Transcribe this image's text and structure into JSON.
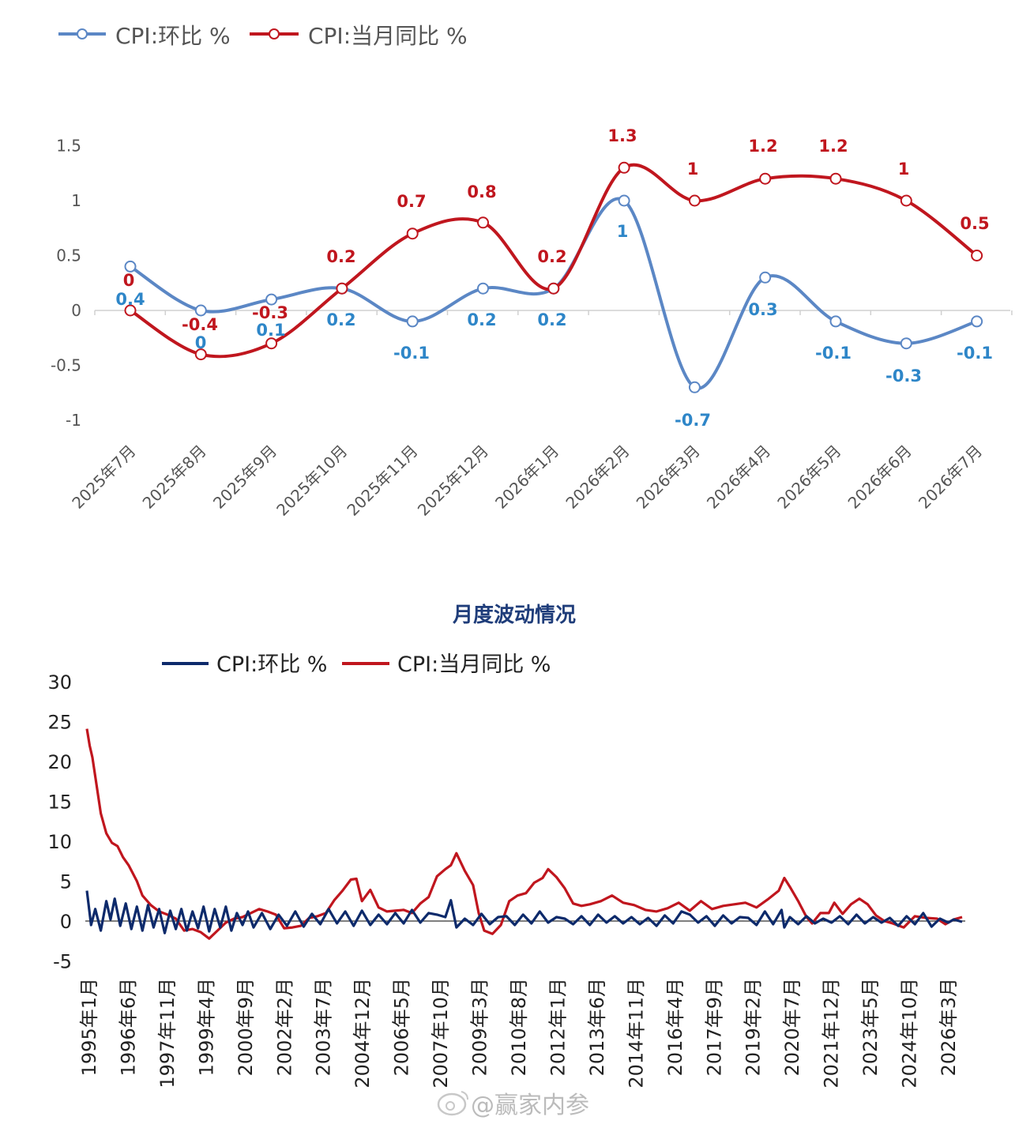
{
  "colors": {
    "mom_top": "#5b87c5",
    "yoy_top": "#c0161e",
    "mom_bottom": "#0d2a6b",
    "yoy_bottom": "#c0161e",
    "label_mom": "#2e86c8",
    "label_yoy": "#c0161e"
  },
  "watermark": "@赢家内参",
  "watermark_icon": "weibo-icon",
  "chart_data": [
    {
      "type": "line",
      "title": "",
      "legend": [
        "CPI:环比 %",
        "CPI:当月同比 %"
      ],
      "legend_position": "top-left",
      "categories": [
        "2025年7月",
        "2025年8月",
        "2025年9月",
        "2025年10月",
        "2025年11月",
        "2025年12月",
        "2026年1月",
        "2026年2月",
        "2026年3月",
        "2026年4月",
        "2026年5月",
        "2026年6月",
        "2026年7月"
      ],
      "series": [
        {
          "name": "CPI:环比 %",
          "values": [
            0.4,
            0,
            0.1,
            0.2,
            -0.1,
            0.2,
            0.2,
            1,
            -0.7,
            0.3,
            -0.1,
            -0.3,
            -0.1
          ]
        },
        {
          "name": "CPI:当月同比 %",
          "values": [
            0,
            -0.4,
            -0.3,
            0.2,
            0.7,
            0.8,
            0.2,
            1.3,
            1,
            1.2,
            1.2,
            1,
            0.5
          ]
        }
      ],
      "yticks": [
        "1.5",
        "1",
        "0.5",
        "0",
        "-0.5",
        "-1"
      ],
      "ylim": [
        -1,
        1.5
      ],
      "grid": false
    },
    {
      "type": "line",
      "title": "月度波动情况",
      "legend": [
        "CPI:环比 %",
        "CPI:当月同比 %"
      ],
      "legend_position": "top",
      "x_tick_labels": [
        "1995年1月",
        "1996年6月",
        "1997年11月",
        "1999年4月",
        "2000年9月",
        "2002年2月",
        "2003年7月",
        "2004年12月",
        "2006年5月",
        "2007年10月",
        "2009年3月",
        "2010年8月",
        "2012年1月",
        "2013年6月",
        "2014年11月",
        "2016年4月",
        "2017年9月",
        "2019年2月",
        "2020年7月",
        "2021年12月",
        "2023年5月",
        "2024年10月",
        "2026年3月"
      ],
      "x_range": [
        "1995-01",
        "2026-07"
      ],
      "yticks": [
        "30",
        "25",
        "20",
        "15",
        "10",
        "5",
        "0",
        "-5"
      ],
      "ylim": [
        -5,
        30
      ],
      "grid": false,
      "series": [
        {
          "name": "CPI:当月同比 %",
          "x": [
            1995.0,
            1995.1,
            1995.2,
            1995.35,
            1995.5,
            1995.7,
            1995.9,
            1996.1,
            1996.3,
            1996.5,
            1996.8,
            1997.0,
            1997.3,
            1997.6,
            1997.9,
            1998.2,
            1998.5,
            1998.8,
            1999.1,
            1999.4,
            1999.7,
            2000.0,
            2000.3,
            2000.6,
            2000.9,
            2001.2,
            2001.5,
            2001.8,
            2002.1,
            2002.4,
            2002.7,
            2003.0,
            2003.3,
            2003.6,
            2003.9,
            2004.2,
            2004.5,
            2004.7,
            2004.9,
            2005.2,
            2005.5,
            2005.8,
            2006.1,
            2006.4,
            2006.7,
            2007.0,
            2007.3,
            2007.6,
            2007.9,
            2008.1,
            2008.3,
            2008.6,
            2008.9,
            2009.1,
            2009.3,
            2009.6,
            2009.9,
            2010.2,
            2010.5,
            2010.8,
            2011.1,
            2011.4,
            2011.6,
            2011.9,
            2012.2,
            2012.5,
            2012.8,
            2013.1,
            2013.5,
            2013.9,
            2014.3,
            2014.7,
            2015.1,
            2015.5,
            2015.9,
            2016.3,
            2016.7,
            2017.1,
            2017.5,
            2017.9,
            2018.3,
            2018.7,
            2019.1,
            2019.5,
            2019.9,
            2020.1,
            2020.3,
            2020.6,
            2020.9,
            2021.1,
            2021.4,
            2021.7,
            2021.9,
            2022.2,
            2022.5,
            2022.8,
            2023.1,
            2023.4,
            2023.7,
            2024.0,
            2024.4,
            2024.8,
            2025.2,
            2025.6,
            2025.9,
            2026.2,
            2026.5
          ],
          "y": [
            24.1,
            22.0,
            20.5,
            17.0,
            13.5,
            11.0,
            9.8,
            9.4,
            8.0,
            7.0,
            5.0,
            3.2,
            2.0,
            1.2,
            0.8,
            0.3,
            -1.2,
            -1.0,
            -1.4,
            -2.2,
            -1.2,
            -0.2,
            0.3,
            0.5,
            1.0,
            1.5,
            1.2,
            0.8,
            -0.9,
            -0.8,
            -0.6,
            0.4,
            0.6,
            1.0,
            2.6,
            3.8,
            5.2,
            5.3,
            2.5,
            3.9,
            1.7,
            1.2,
            1.3,
            1.4,
            1.0,
            2.2,
            3.0,
            5.6,
            6.5,
            7.0,
            8.5,
            6.3,
            4.5,
            1.0,
            -1.2,
            -1.6,
            -0.5,
            2.5,
            3.2,
            3.5,
            4.8,
            5.4,
            6.5,
            5.5,
            4.1,
            2.2,
            1.9,
            2.1,
            2.5,
            3.2,
            2.3,
            2.0,
            1.4,
            1.2,
            1.6,
            2.3,
            1.3,
            2.5,
            1.5,
            1.9,
            2.1,
            2.3,
            1.7,
            2.7,
            3.8,
            5.4,
            4.3,
            2.5,
            0.5,
            -0.3,
            1.0,
            1.0,
            2.3,
            0.9,
            2.1,
            2.8,
            2.1,
            0.7,
            0.0,
            -0.3,
            -0.8,
            0.6,
            0.4,
            0.3,
            -0.4,
            0.2,
            0.5
          ]
        },
        {
          "name": "CPI:环比 %",
          "x": [
            1995.0,
            1995.15,
            1995.3,
            1995.5,
            1995.7,
            1995.85,
            1996.0,
            1996.2,
            1996.4,
            1996.6,
            1996.8,
            1997.0,
            1997.2,
            1997.4,
            1997.6,
            1997.8,
            1998.0,
            1998.2,
            1998.4,
            1998.6,
            1998.8,
            1999.0,
            1999.2,
            1999.4,
            1999.6,
            1999.8,
            2000.0,
            2000.2,
            2000.4,
            2000.6,
            2000.8,
            2001.0,
            2001.3,
            2001.6,
            2001.9,
            2002.2,
            2002.5,
            2002.8,
            2003.1,
            2003.4,
            2003.7,
            2004.0,
            2004.3,
            2004.6,
            2004.9,
            2005.2,
            2005.5,
            2005.8,
            2006.1,
            2006.4,
            2006.7,
            2007.0,
            2007.3,
            2007.6,
            2007.9,
            2008.1,
            2008.3,
            2008.6,
            2008.9,
            2009.2,
            2009.5,
            2009.8,
            2010.1,
            2010.4,
            2010.7,
            2011.0,
            2011.3,
            2011.6,
            2011.9,
            2012.2,
            2012.5,
            2012.8,
            2013.1,
            2013.4,
            2013.7,
            2014.0,
            2014.3,
            2014.6,
            2014.9,
            2015.2,
            2015.5,
            2015.8,
            2016.1,
            2016.4,
            2016.7,
            2017.0,
            2017.3,
            2017.6,
            2017.9,
            2018.2,
            2018.5,
            2018.8,
            2019.1,
            2019.4,
            2019.7,
            2020.0,
            2020.1,
            2020.3,
            2020.6,
            2020.9,
            2021.2,
            2021.5,
            2021.8,
            2022.1,
            2022.4,
            2022.7,
            2023.0,
            2023.3,
            2023.6,
            2023.9,
            2024.2,
            2024.5,
            2024.8,
            2025.1,
            2025.4,
            2025.7,
            2026.0,
            2026.2,
            2026.5
          ],
          "y": [
            3.8,
            -0.5,
            1.5,
            -1.2,
            2.5,
            0.2,
            2.8,
            -0.6,
            2.2,
            -1.0,
            1.8,
            -1.2,
            2.0,
            -0.8,
            1.5,
            -1.5,
            1.3,
            -1.0,
            1.5,
            -1.2,
            1.2,
            -0.9,
            1.8,
            -1.3,
            1.5,
            -0.8,
            1.8,
            -1.2,
            1.0,
            -0.5,
            1.2,
            -0.8,
            1.0,
            -1.0,
            0.8,
            -0.6,
            1.2,
            -0.7,
            0.9,
            -0.4,
            1.5,
            -0.3,
            1.2,
            -0.6,
            1.3,
            -0.5,
            0.8,
            -0.4,
            1.0,
            -0.3,
            1.4,
            -0.2,
            1.0,
            0.8,
            0.5,
            2.6,
            -0.8,
            0.3,
            -0.5,
            0.9,
            -0.4,
            0.5,
            0.6,
            -0.5,
            0.8,
            -0.3,
            1.2,
            -0.2,
            0.5,
            0.3,
            -0.4,
            0.6,
            -0.5,
            0.8,
            -0.2,
            0.6,
            -0.3,
            0.5,
            -0.4,
            0.4,
            -0.6,
            0.7,
            -0.3,
            1.2,
            0.8,
            -0.2,
            0.6,
            -0.6,
            0.7,
            -0.3,
            0.5,
            0.4,
            -0.5,
            1.2,
            -0.4,
            1.4,
            -0.8,
            0.5,
            -0.4,
            0.6,
            -0.3,
            0.3,
            -0.2,
            0.6,
            -0.4,
            0.8,
            -0.3,
            0.5,
            -0.2,
            0.4,
            -0.6,
            0.6,
            -0.4,
            1.0,
            -0.7,
            0.3,
            -0.2,
            0.2,
            -0.1
          ]
        }
      ]
    }
  ]
}
